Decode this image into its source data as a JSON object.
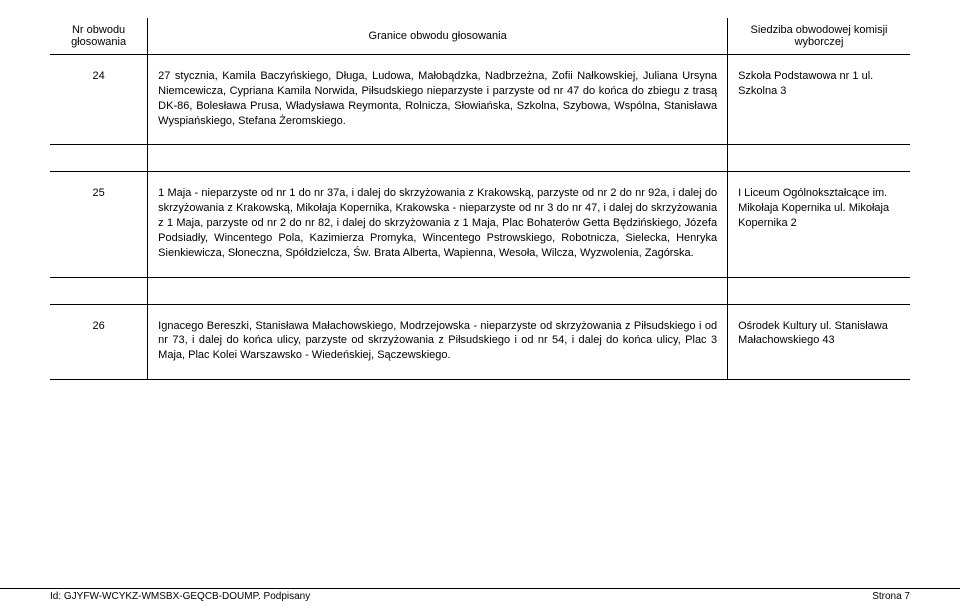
{
  "table": {
    "headers": {
      "nr": "Nr obwodu głosowania",
      "granice": "Granice obwodu głosowania",
      "siedziba": "Siedziba obwodowej komisji wyborczej"
    },
    "rows": [
      {
        "nr": "24",
        "granice": "27 stycznia, Kamila Baczyńskiego, Długa, Ludowa, Małobądzka, Nadbrzeżna, Zofii Nałkowskiej, Juliana Ursyna Niemcewicza, Cypriana Kamila Norwida, Piłsudskiego nieparzyste i parzyste od nr 47 do końca do zbiegu z trasą DK-86, Bolesława Prusa, Władysława Reymonta, Rolnicza, Słowiańska, Szkolna, Szybowa, Wspólna, Stanisława Wyspiańskiego, Stefana Żeromskiego.",
        "siedziba": "Szkoła Podstawowa nr  1 ul. Szkolna 3"
      },
      {
        "nr": "25",
        "granice": "1 Maja - nieparzyste od nr 1 do nr 37a, i dalej do skrzyżowania z Krakowską, parzyste od nr 2 do nr  92a, i  dalej do skrzyżowania z Krakowską, Mikołaja Kopernika, Krakowska - nieparzyste od nr 3 do nr 47, i dalej do skrzyżowania z 1 Maja, parzyste od nr 2 do nr 82, i dalej do skrzyżowania z 1 Maja, Plac Bohaterów Getta Będzińskiego, Józefa Podsiadły, Wincentego Pola, Kazimierza Promyka, Wincentego Pstrowskiego, Robotnicza, Sielecka, Henryka Sienkiewicza, Słoneczna, Spółdzielcza, Św. Brata Alberta, Wapienna, Wesoła, Wilcza, Wyzwolenia, Zagórska.",
        "siedziba": "I Liceum Ogólnokształcące im. Mikołaja Kopernika ul. Mikołaja Kopernika 2"
      },
      {
        "nr": "26",
        "granice": "Ignacego Bereszki, Stanisława Małachowskiego, Modrzejowska -  nieparzyste od skrzyżowania z Piłsudskiego i od nr  73, i dalej do końca ulicy,  parzyste od skrzyżowania z Piłsudskiego i od nr 54, i dalej do końca ulicy, Plac 3 Maja, Plac Kolei Warszawsko - Wiedeńskiej, Sączewskiego.",
        "siedziba": "Ośrodek Kultury ul. Stanisława Małachowskiego 43"
      }
    ]
  },
  "footer": {
    "left": "Id: GJYFW-WCYKZ-WMSBX-GEQCB-DOUMP. Podpisany",
    "right": "Strona 7"
  }
}
